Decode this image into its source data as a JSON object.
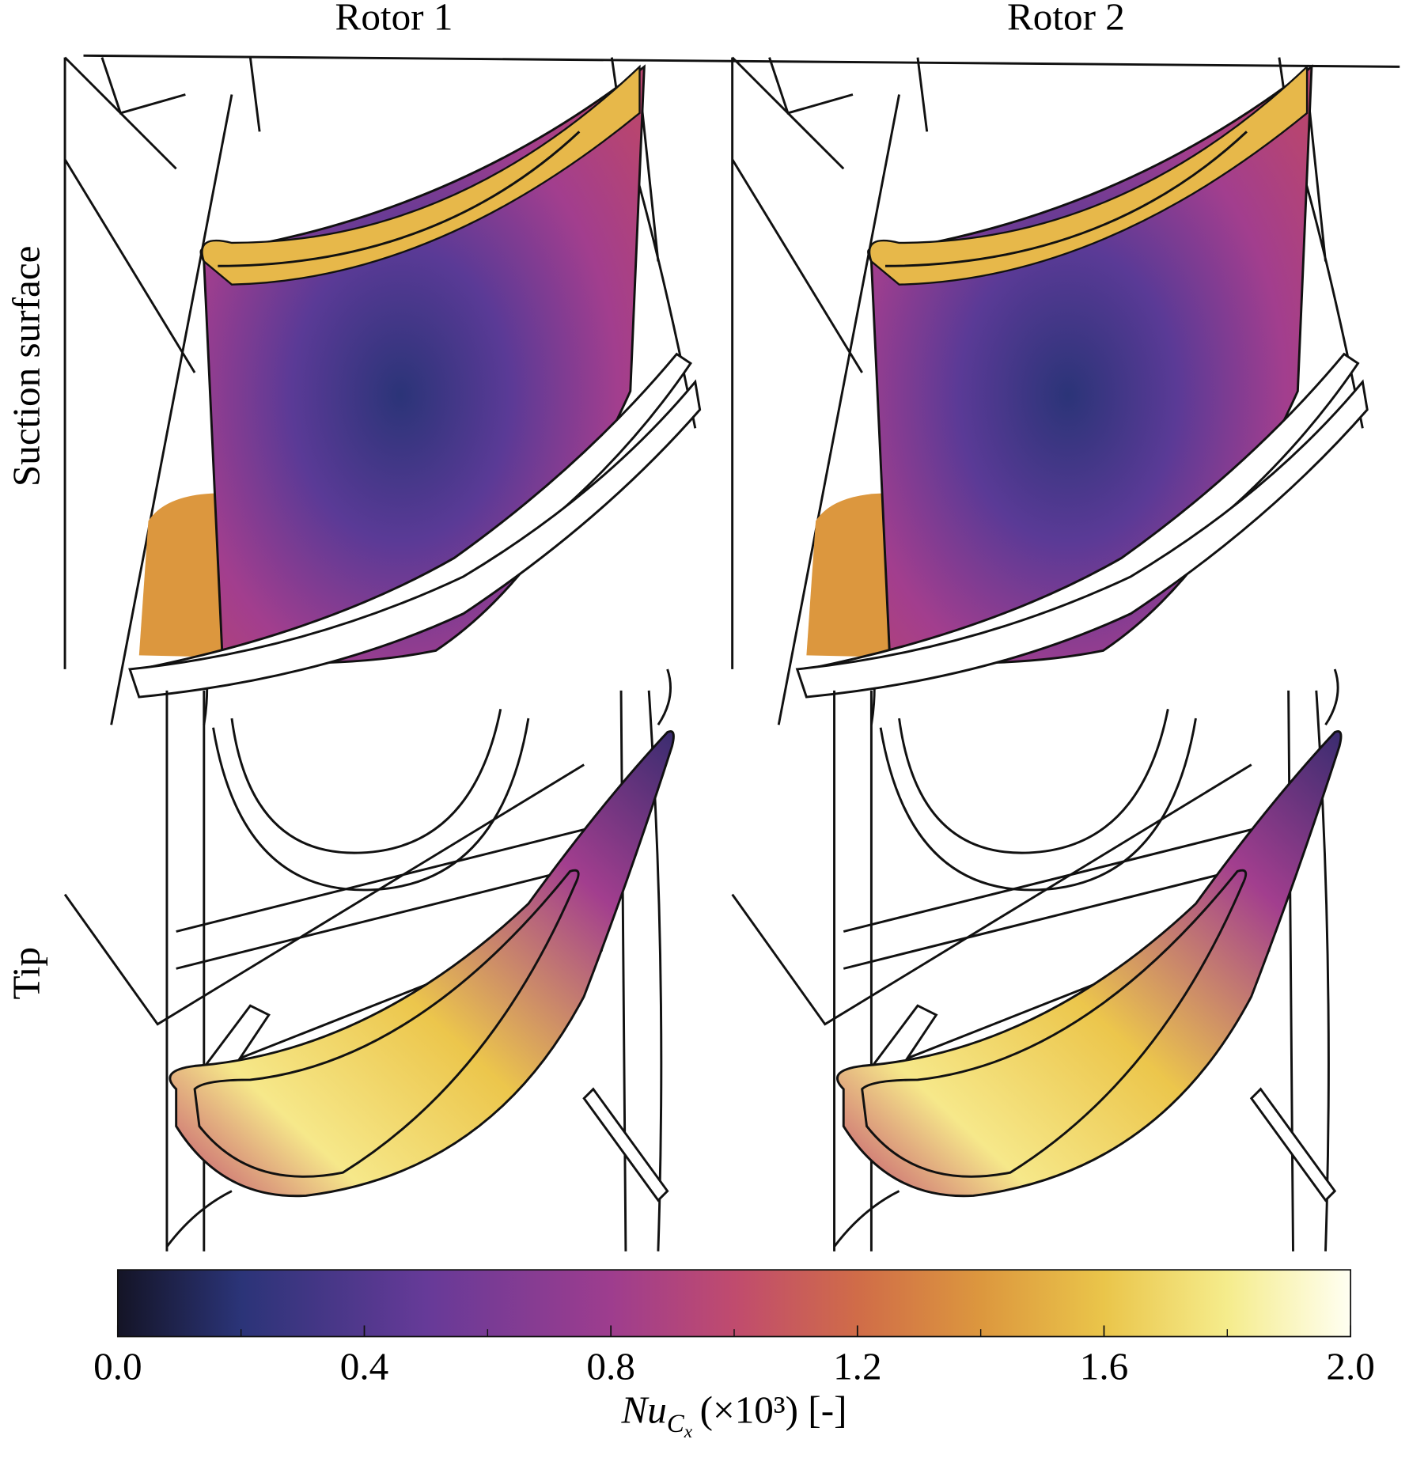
{
  "columns": [
    "Rotor 1",
    "Rotor 2"
  ],
  "rows": [
    "Suction surface",
    "Tip"
  ],
  "colorbar": {
    "label": {
      "symbol": "Nu",
      "subscript": "C",
      "sub_subscript": "x",
      "rest": "(×10³) [-]"
    },
    "lim": [
      0,
      2
    ],
    "ticks": [
      {
        "value": 0,
        "label": "0.0"
      },
      {
        "value": 0.4,
        "label": "0.4"
      },
      {
        "value": 0.8,
        "label": "0.8"
      },
      {
        "value": 1.2,
        "label": "1.2"
      },
      {
        "value": 1.6,
        "label": "1.6"
      },
      {
        "value": 2,
        "label": "2.0"
      }
    ],
    "minor_ticks": [
      0.2,
      0.6,
      1,
      1.4,
      1.8
    ]
  }
}
